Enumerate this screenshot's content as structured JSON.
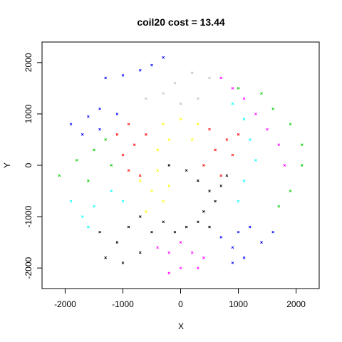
{
  "chart_data": {
    "type": "scatter",
    "title": "coil20  cost = 13.44",
    "xlabel": "X",
    "ylabel": "Y",
    "xlim": [
      -2400,
      2400
    ],
    "ylim": [
      -2400,
      2400
    ],
    "xticks": [
      -2000,
      -1000,
      0,
      1000,
      2000
    ],
    "yticks": [
      -2000,
      -1000,
      0,
      1000,
      2000
    ],
    "grid": false,
    "legend": "none",
    "marker": "x",
    "colors": [
      "#000000",
      "#ff0000",
      "#00cc00",
      "#0000ff",
      "#00ffff",
      "#ff00ff",
      "#ffff00",
      "#bebebe"
    ],
    "clusters": [
      {
        "color": 3,
        "points": [
          [
            -700,
            1850
          ],
          [
            -500,
            1950
          ],
          [
            -300,
            2100
          ],
          [
            -1300,
            1700
          ],
          [
            -1000,
            1750
          ]
        ]
      },
      {
        "color": 3,
        "points": [
          [
            -1900,
            800
          ],
          [
            -1600,
            950
          ],
          [
            -1400,
            1100
          ],
          [
            -1100,
            1000
          ],
          [
            -1700,
            600
          ],
          [
            -1400,
            700
          ]
        ]
      },
      {
        "color": 7,
        "points": [
          [
            -600,
            1300
          ],
          [
            -300,
            1400
          ],
          [
            -100,
            1600
          ],
          [
            200,
            1800
          ],
          [
            500,
            1700
          ],
          [
            0,
            1200
          ],
          [
            300,
            1300
          ]
        ]
      },
      {
        "color": 5,
        "points": [
          [
            700,
            1700
          ],
          [
            900,
            1500
          ],
          [
            1100,
            1300
          ],
          [
            1300,
            1000
          ],
          [
            1500,
            700
          ],
          [
            1700,
            400
          ],
          [
            1800,
            0
          ]
        ]
      },
      {
        "color": 2,
        "points": [
          [
            1000,
            1500
          ],
          [
            1400,
            1400
          ],
          [
            1600,
            1100
          ],
          [
            1900,
            800
          ],
          [
            2100,
            400
          ],
          [
            2100,
            0
          ],
          [
            1900,
            -500
          ],
          [
            1700,
            -800
          ]
        ]
      },
      {
        "color": 4,
        "points": [
          [
            900,
            1200
          ],
          [
            1100,
            900
          ],
          [
            1200,
            500
          ],
          [
            1300,
            100
          ],
          [
            1100,
            -300
          ],
          [
            1000,
            -700
          ]
        ]
      },
      {
        "color": 6,
        "points": [
          [
            -300,
            800
          ],
          [
            0,
            900
          ],
          [
            300,
            800
          ],
          [
            -200,
            500
          ],
          [
            200,
            500
          ],
          [
            -400,
            300
          ]
        ]
      },
      {
        "color": 1,
        "points": [
          [
            500,
            700
          ],
          [
            800,
            500
          ],
          [
            900,
            200
          ],
          [
            600,
            300
          ],
          [
            400,
            0
          ],
          [
            700,
            -200
          ],
          [
            1000,
            600
          ]
        ]
      },
      {
        "color": 1,
        "points": [
          [
            -1100,
            600
          ],
          [
            -900,
            800
          ],
          [
            -800,
            400
          ],
          [
            -1000,
            200
          ],
          [
            -900,
            -100
          ],
          [
            -700,
            -200
          ],
          [
            -600,
            600
          ]
        ]
      },
      {
        "color": 2,
        "points": [
          [
            -2100,
            -200
          ],
          [
            -1800,
            100
          ],
          [
            -1500,
            300
          ],
          [
            -1300,
            500
          ],
          [
            -1200,
            0
          ],
          [
            -1600,
            -300
          ]
        ]
      },
      {
        "color": 4,
        "points": [
          [
            -1900,
            -700
          ],
          [
            -1700,
            -1000
          ],
          [
            -1500,
            -800
          ],
          [
            -1200,
            -500
          ],
          [
            -1000,
            -700
          ],
          [
            -1600,
            -1200
          ]
        ]
      },
      {
        "color": 6,
        "points": [
          [
            -700,
            -300
          ],
          [
            -500,
            -500
          ],
          [
            -300,
            -700
          ],
          [
            -600,
            -900
          ],
          [
            -200,
            -400
          ],
          [
            -400,
            -100
          ]
        ]
      },
      {
        "color": 0,
        "points": [
          [
            -200,
            0
          ],
          [
            100,
            -100
          ],
          [
            300,
            -300
          ],
          [
            500,
            -500
          ],
          [
            700,
            -400
          ],
          [
            600,
            -700
          ],
          [
            400,
            -900
          ],
          [
            800,
            -200
          ]
        ]
      },
      {
        "color": 0,
        "points": [
          [
            -1400,
            -1300
          ],
          [
            -1100,
            -1500
          ],
          [
            -900,
            -1200
          ],
          [
            -700,
            -1000
          ],
          [
            -500,
            -1300
          ],
          [
            -300,
            -1100
          ],
          [
            -100,
            -1300
          ],
          [
            100,
            -1200
          ],
          [
            300,
            -1100
          ],
          [
            500,
            -1200
          ],
          [
            -1300,
            -1800
          ],
          [
            -1000,
            -1900
          ],
          [
            -700,
            -1700
          ]
        ]
      },
      {
        "color": 5,
        "points": [
          [
            -400,
            -1600
          ],
          [
            -200,
            -1700
          ],
          [
            0,
            -1500
          ],
          [
            200,
            -1700
          ],
          [
            400,
            -1800
          ],
          [
            0,
            -2000
          ],
          [
            -200,
            -2100
          ],
          [
            300,
            -2000
          ]
        ]
      },
      {
        "color": 3,
        "points": [
          [
            700,
            -1400
          ],
          [
            900,
            -1600
          ],
          [
            1100,
            -1800
          ],
          [
            1400,
            -1500
          ],
          [
            1600,
            -1300
          ],
          [
            1000,
            -1300
          ],
          [
            1200,
            -1200
          ],
          [
            900,
            -1900
          ]
        ]
      }
    ]
  }
}
